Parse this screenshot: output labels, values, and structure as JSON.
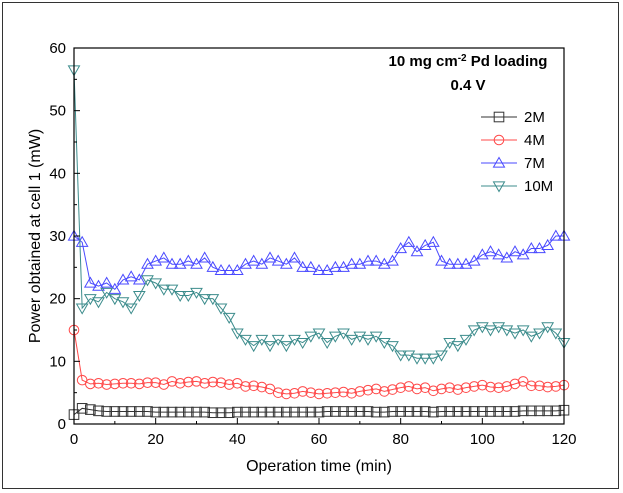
{
  "chart_data": {
    "type": "scatter",
    "annotation": {
      "line1_pre": "10 mg cm",
      "line1_sup": "-2",
      "line1_post": " Pd loading",
      "line2": "0.4 V"
    },
    "xlabel": "Operation time (min)",
    "ylabel": "Power obtained at cell 1 (mW)",
    "xlim": [
      0,
      120
    ],
    "ylim": [
      0,
      60
    ],
    "xticks": [
      0,
      20,
      40,
      60,
      80,
      100,
      120
    ],
    "yticks": [
      0,
      10,
      20,
      30,
      40,
      50,
      60
    ],
    "grid": false,
    "legend_position": "top-right",
    "series": [
      {
        "name": "2M",
        "marker": "square",
        "color": "#333333",
        "x": [
          0,
          2,
          4,
          6,
          8,
          10,
          12,
          14,
          16,
          18,
          20,
          22,
          24,
          26,
          28,
          30,
          32,
          34,
          36,
          38,
          40,
          42,
          44,
          46,
          48,
          50,
          52,
          54,
          56,
          58,
          60,
          62,
          64,
          66,
          68,
          70,
          72,
          74,
          76,
          78,
          80,
          82,
          84,
          86,
          88,
          90,
          92,
          94,
          96,
          98,
          100,
          102,
          104,
          106,
          108,
          110,
          112,
          114,
          116,
          118,
          120
        ],
        "y": [
          1.5,
          2.5,
          2.3,
          2.1,
          2.0,
          2.0,
          2.0,
          2.0,
          2.0,
          2.0,
          1.9,
          1.9,
          1.9,
          1.9,
          1.9,
          1.9,
          1.9,
          1.8,
          1.8,
          1.8,
          1.9,
          1.9,
          1.9,
          1.9,
          1.9,
          1.9,
          1.9,
          1.9,
          1.9,
          1.9,
          1.9,
          2.0,
          2.0,
          2.0,
          2.0,
          2.0,
          2.0,
          1.9,
          1.9,
          2.0,
          2.0,
          2.0,
          2.0,
          2.0,
          1.9,
          2.0,
          2.0,
          2.0,
          2.0,
          2.0,
          2.0,
          2.0,
          2.0,
          2.0,
          2.0,
          2.1,
          2.1,
          2.1,
          2.1,
          2.1,
          2.2
        ]
      },
      {
        "name": "4M",
        "marker": "circle",
        "color": "#ff4a4a",
        "x": [
          0,
          2,
          4,
          6,
          8,
          10,
          12,
          14,
          16,
          18,
          20,
          22,
          24,
          26,
          28,
          30,
          32,
          34,
          36,
          38,
          40,
          42,
          44,
          46,
          48,
          50,
          52,
          54,
          56,
          58,
          60,
          62,
          64,
          66,
          68,
          70,
          72,
          74,
          76,
          78,
          80,
          82,
          84,
          86,
          88,
          90,
          92,
          94,
          96,
          98,
          100,
          102,
          104,
          106,
          108,
          110,
          112,
          114,
          116,
          118,
          120
        ],
        "y": [
          15.0,
          7.0,
          6.4,
          6.5,
          6.3,
          6.4,
          6.5,
          6.5,
          6.4,
          6.6,
          6.6,
          6.3,
          6.8,
          6.5,
          6.7,
          6.8,
          6.5,
          6.7,
          6.6,
          6.3,
          6.5,
          6.0,
          6.1,
          5.9,
          5.6,
          5.0,
          4.8,
          4.9,
          5.2,
          5.0,
          4.8,
          4.9,
          5.0,
          5.1,
          4.9,
          5.2,
          5.4,
          5.6,
          5.2,
          5.5,
          5.8,
          6.0,
          5.6,
          5.8,
          5.3,
          5.6,
          5.8,
          5.5,
          5.8,
          6.0,
          6.2,
          5.9,
          5.8,
          6.0,
          6.4,
          6.8,
          6.1,
          6.1,
          5.9,
          6.0,
          6.2
        ]
      },
      {
        "name": "7M",
        "marker": "triangle-up",
        "color": "#4a4aff",
        "x": [
          0,
          2,
          4,
          6,
          8,
          10,
          12,
          14,
          16,
          18,
          20,
          22,
          24,
          26,
          28,
          30,
          32,
          34,
          36,
          38,
          40,
          42,
          44,
          46,
          48,
          50,
          52,
          54,
          56,
          58,
          60,
          62,
          64,
          66,
          68,
          70,
          72,
          74,
          76,
          78,
          80,
          82,
          84,
          86,
          88,
          90,
          92,
          94,
          96,
          98,
          100,
          102,
          104,
          106,
          108,
          110,
          112,
          114,
          116,
          118,
          120
        ],
        "y": [
          30.0,
          29.0,
          22.5,
          22.0,
          22.5,
          21.5,
          23.0,
          23.5,
          23.0,
          25.5,
          26.0,
          26.5,
          25.5,
          25.5,
          26.0,
          25.5,
          26.5,
          25.0,
          24.5,
          24.5,
          24.5,
          25.5,
          26.0,
          25.5,
          26.5,
          26.0,
          25.5,
          26.5,
          25.0,
          25.0,
          24.5,
          24.5,
          25.0,
          25.0,
          25.5,
          25.5,
          26.0,
          26.0,
          25.5,
          26.0,
          28.0,
          29.0,
          27.5,
          28.5,
          29.0,
          26.0,
          25.5,
          25.5,
          25.5,
          26.0,
          27.0,
          27.5,
          27.0,
          26.5,
          27.5,
          27.0,
          28.0,
          28.0,
          28.5,
          30.0,
          30.0
        ]
      },
      {
        "name": "10M",
        "marker": "triangle-down",
        "color": "#3c8c8c",
        "x": [
          0,
          2,
          4,
          6,
          8,
          10,
          12,
          14,
          16,
          18,
          20,
          22,
          24,
          26,
          28,
          30,
          32,
          34,
          36,
          38,
          40,
          42,
          44,
          46,
          48,
          50,
          52,
          54,
          56,
          58,
          60,
          62,
          64,
          66,
          68,
          70,
          72,
          74,
          76,
          78,
          80,
          82,
          84,
          86,
          88,
          90,
          92,
          94,
          96,
          98,
          100,
          102,
          104,
          106,
          108,
          110,
          112,
          114,
          116,
          118,
          120
        ],
        "y": [
          56.5,
          18.5,
          20.0,
          19.5,
          21.0,
          20.0,
          19.5,
          18.5,
          20.5,
          23.0,
          22.5,
          21.5,
          21.5,
          20.5,
          20.5,
          21.0,
          20.0,
          20.0,
          18.5,
          17.0,
          14.5,
          13.5,
          12.5,
          13.5,
          12.5,
          13.5,
          12.5,
          13.5,
          13.0,
          14.0,
          14.5,
          13.0,
          14.0,
          14.5,
          13.5,
          14.0,
          13.5,
          14.0,
          13.0,
          12.5,
          11.0,
          11.0,
          10.5,
          10.5,
          10.5,
          11.0,
          13.0,
          12.5,
          13.5,
          15.0,
          15.5,
          15.0,
          15.5,
          15.0,
          14.5,
          15.0,
          14.0,
          14.5,
          15.5,
          14.5,
          13.0
        ]
      }
    ]
  }
}
